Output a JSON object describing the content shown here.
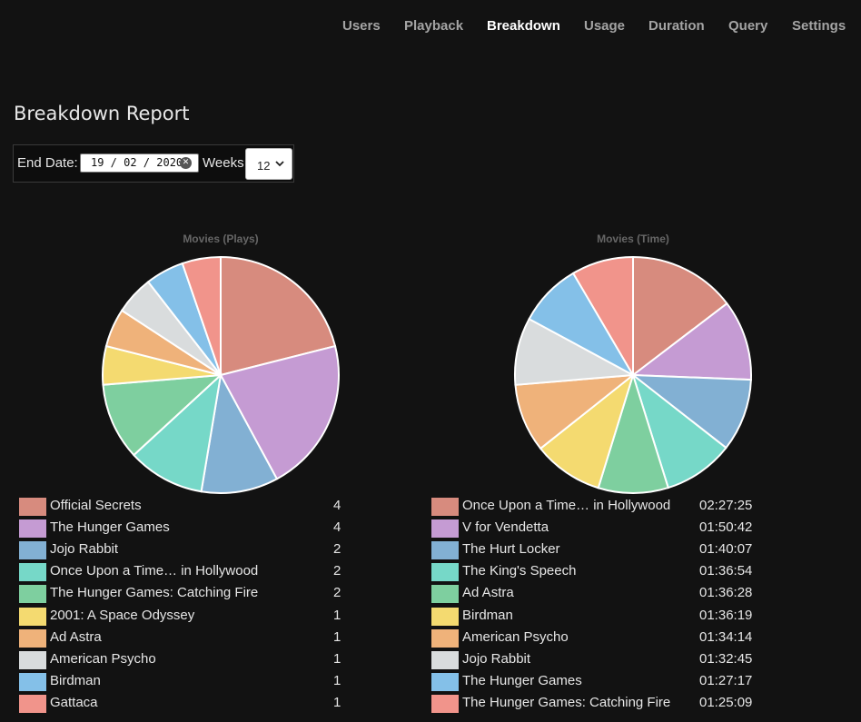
{
  "nav": {
    "items": [
      {
        "label": "Users",
        "active": false
      },
      {
        "label": "Playback",
        "active": false
      },
      {
        "label": "Breakdown",
        "active": true
      },
      {
        "label": "Usage",
        "active": false
      },
      {
        "label": "Duration",
        "active": false
      },
      {
        "label": "Query",
        "active": false
      },
      {
        "label": "Settings",
        "active": false
      }
    ]
  },
  "page": {
    "title": "Breakdown Report"
  },
  "controls": {
    "end_date_label": "End Date:",
    "end_date_value": "19 / 02 / 2020",
    "weeks_label": "Weeks",
    "weeks_value": "12"
  },
  "colors": [
    "#d78b7e",
    "#c59bd3",
    "#82b0d3",
    "#76d8c8",
    "#7ecf9f",
    "#f4da70",
    "#efb27a",
    "#d9dcdd",
    "#84c0e8",
    "#f1948b"
  ],
  "chart_data": [
    {
      "type": "pie",
      "title": "Movies (Plays)",
      "categories": [
        "Official Secrets",
        "The Hunger Games",
        "Jojo Rabbit",
        "Once Upon a Time… in Hollywood",
        "The Hunger Games: Catching Fire",
        "2001: A Space Odyssey",
        "Ad Astra",
        "American Psycho",
        "Birdman",
        "Gattaca"
      ],
      "values": [
        4,
        4,
        2,
        2,
        2,
        1,
        1,
        1,
        1,
        1
      ],
      "value_labels": [
        "4",
        "4",
        "2",
        "2",
        "2",
        "1",
        "1",
        "1",
        "1",
        "1"
      ]
    },
    {
      "type": "pie",
      "title": "Movies (Time)",
      "categories": [
        "Once Upon a Time… in Hollywood",
        "V for Vendetta",
        "The Hurt Locker",
        "The King's Speech",
        "Ad Astra",
        "Birdman",
        "American Psycho",
        "Jojo Rabbit",
        "The Hunger Games",
        "The Hunger Games: Catching Fire"
      ],
      "values": [
        8845,
        6642,
        6007,
        5814,
        5788,
        5779,
        5654,
        5565,
        5237,
        5109
      ],
      "value_labels": [
        "02:27:25",
        "01:50:42",
        "01:40:07",
        "01:36:54",
        "01:36:28",
        "01:36:19",
        "01:34:14",
        "01:32:45",
        "01:27:17",
        "01:25:09"
      ]
    }
  ]
}
